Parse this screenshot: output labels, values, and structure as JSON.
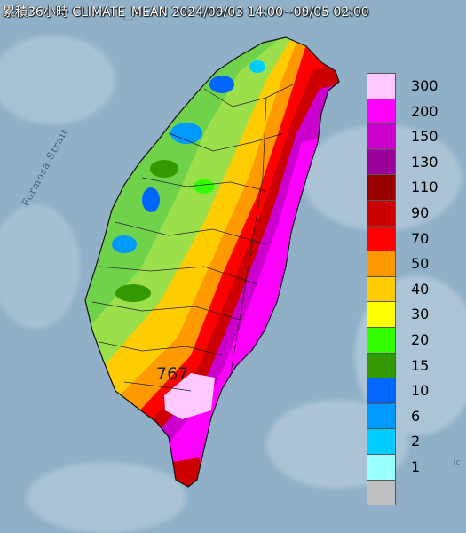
{
  "title": "累積36小時 CLIMATE_MEAN 2024/09/03 14:00~09/05 02:00",
  "strait_label": "Formosa Strait",
  "peak_value": "767",
  "corner_mark": "ic",
  "legend": {
    "items": [
      {
        "label": "300",
        "color": "#ffc8ff"
      },
      {
        "label": "200",
        "color": "#ff00ff"
      },
      {
        "label": "150",
        "color": "#cc00cc"
      },
      {
        "label": "130",
        "color": "#990099"
      },
      {
        "label": "110",
        "color": "#990000"
      },
      {
        "label": "90",
        "color": "#cc0000"
      },
      {
        "label": "70",
        "color": "#ff0000"
      },
      {
        "label": "50",
        "color": "#ff9900"
      },
      {
        "label": "40",
        "color": "#ffcc00"
      },
      {
        "label": "30",
        "color": "#ffff00"
      },
      {
        "label": "20",
        "color": "#33ff00"
      },
      {
        "label": "15",
        "color": "#339900"
      },
      {
        "label": "10",
        "color": "#0066ff"
      },
      {
        "label": "6",
        "color": "#0099ff"
      },
      {
        "label": "2",
        "color": "#00ccff"
      },
      {
        "label": "1",
        "color": "#99ffff"
      },
      {
        "label": "",
        "color": "#c0c0c0"
      }
    ]
  }
}
